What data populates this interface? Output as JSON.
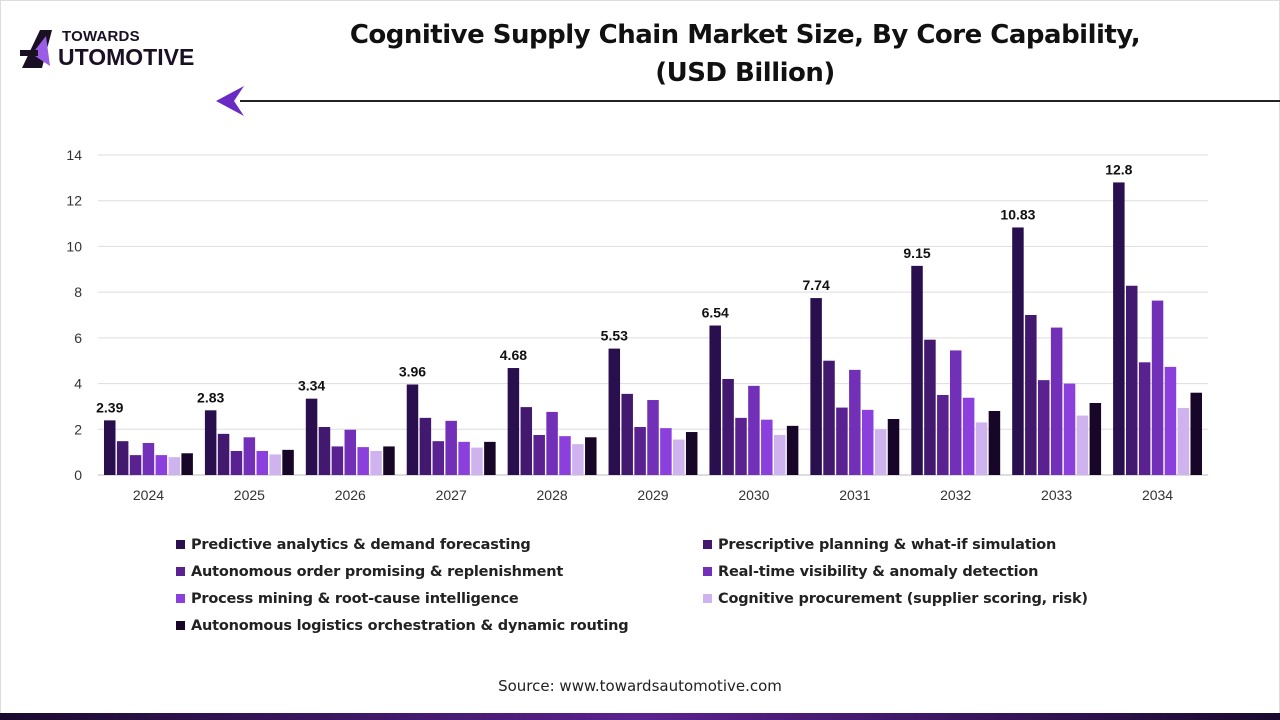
{
  "logo": {
    "line1": "TOWARDS",
    "line2": "UTOMOTIVE",
    "full": "TOWARDS AUTOMOTIVE"
  },
  "title_line1": "Cognitive Supply Chain Market Size, By Core Capability,",
  "title_line2": "(USD Billion)",
  "source": "Source: www.towardsautomotive.com",
  "chart_data": {
    "type": "bar",
    "title": "Cognitive Supply Chain Market Size, By Core Capability, (USD Billion)",
    "xlabel": "",
    "ylabel": "",
    "ylim": [
      0,
      14
    ],
    "yticks": [
      0,
      2,
      4,
      6,
      8,
      10,
      12,
      14
    ],
    "grid": true,
    "legend_position": "bottom",
    "categories": [
      "2024",
      "2025",
      "2026",
      "2027",
      "2028",
      "2029",
      "2030",
      "2031",
      "2032",
      "2033",
      "2034"
    ],
    "series": [
      {
        "name": "Predictive analytics & demand forecasting",
        "color": "#2a0f4f",
        "values": [
          2.39,
          2.83,
          3.34,
          3.96,
          4.68,
          5.53,
          6.54,
          7.74,
          9.15,
          10.83,
          12.8
        ],
        "labeled": true
      },
      {
        "name": "Prescriptive planning & what-if simulation",
        "color": "#43186f",
        "values": [
          1.48,
          1.8,
          2.1,
          2.5,
          2.97,
          3.55,
          4.2,
          5.0,
          5.92,
          7.0,
          8.28
        ]
      },
      {
        "name": "Autonomous order promising & replenishment",
        "color": "#5a2290",
        "values": [
          0.87,
          1.05,
          1.25,
          1.48,
          1.75,
          2.1,
          2.5,
          2.95,
          3.5,
          4.15,
          4.93
        ]
      },
      {
        "name": "Real-time visibility & anomaly detection",
        "color": "#7230b8",
        "values": [
          1.4,
          1.65,
          1.98,
          2.37,
          2.76,
          3.28,
          3.9,
          4.6,
          5.45,
          6.45,
          7.63
        ]
      },
      {
        "name": "Process mining & root-cause intelligence",
        "color": "#8b3fdc",
        "values": [
          0.87,
          1.05,
          1.22,
          1.45,
          1.7,
          2.05,
          2.42,
          2.85,
          3.38,
          4.0,
          4.73
        ]
      },
      {
        "name": "Cognitive procurement (supplier scoring, risk)",
        "color": "#cfb3ef",
        "values": [
          0.78,
          0.9,
          1.05,
          1.2,
          1.35,
          1.55,
          1.75,
          2.0,
          2.3,
          2.6,
          2.93
        ]
      },
      {
        "name": "Autonomous logistics orchestration & dynamic routing",
        "color": "#170628",
        "values": [
          0.95,
          1.1,
          1.25,
          1.45,
          1.65,
          1.88,
          2.15,
          2.45,
          2.8,
          3.15,
          3.6
        ]
      }
    ]
  }
}
